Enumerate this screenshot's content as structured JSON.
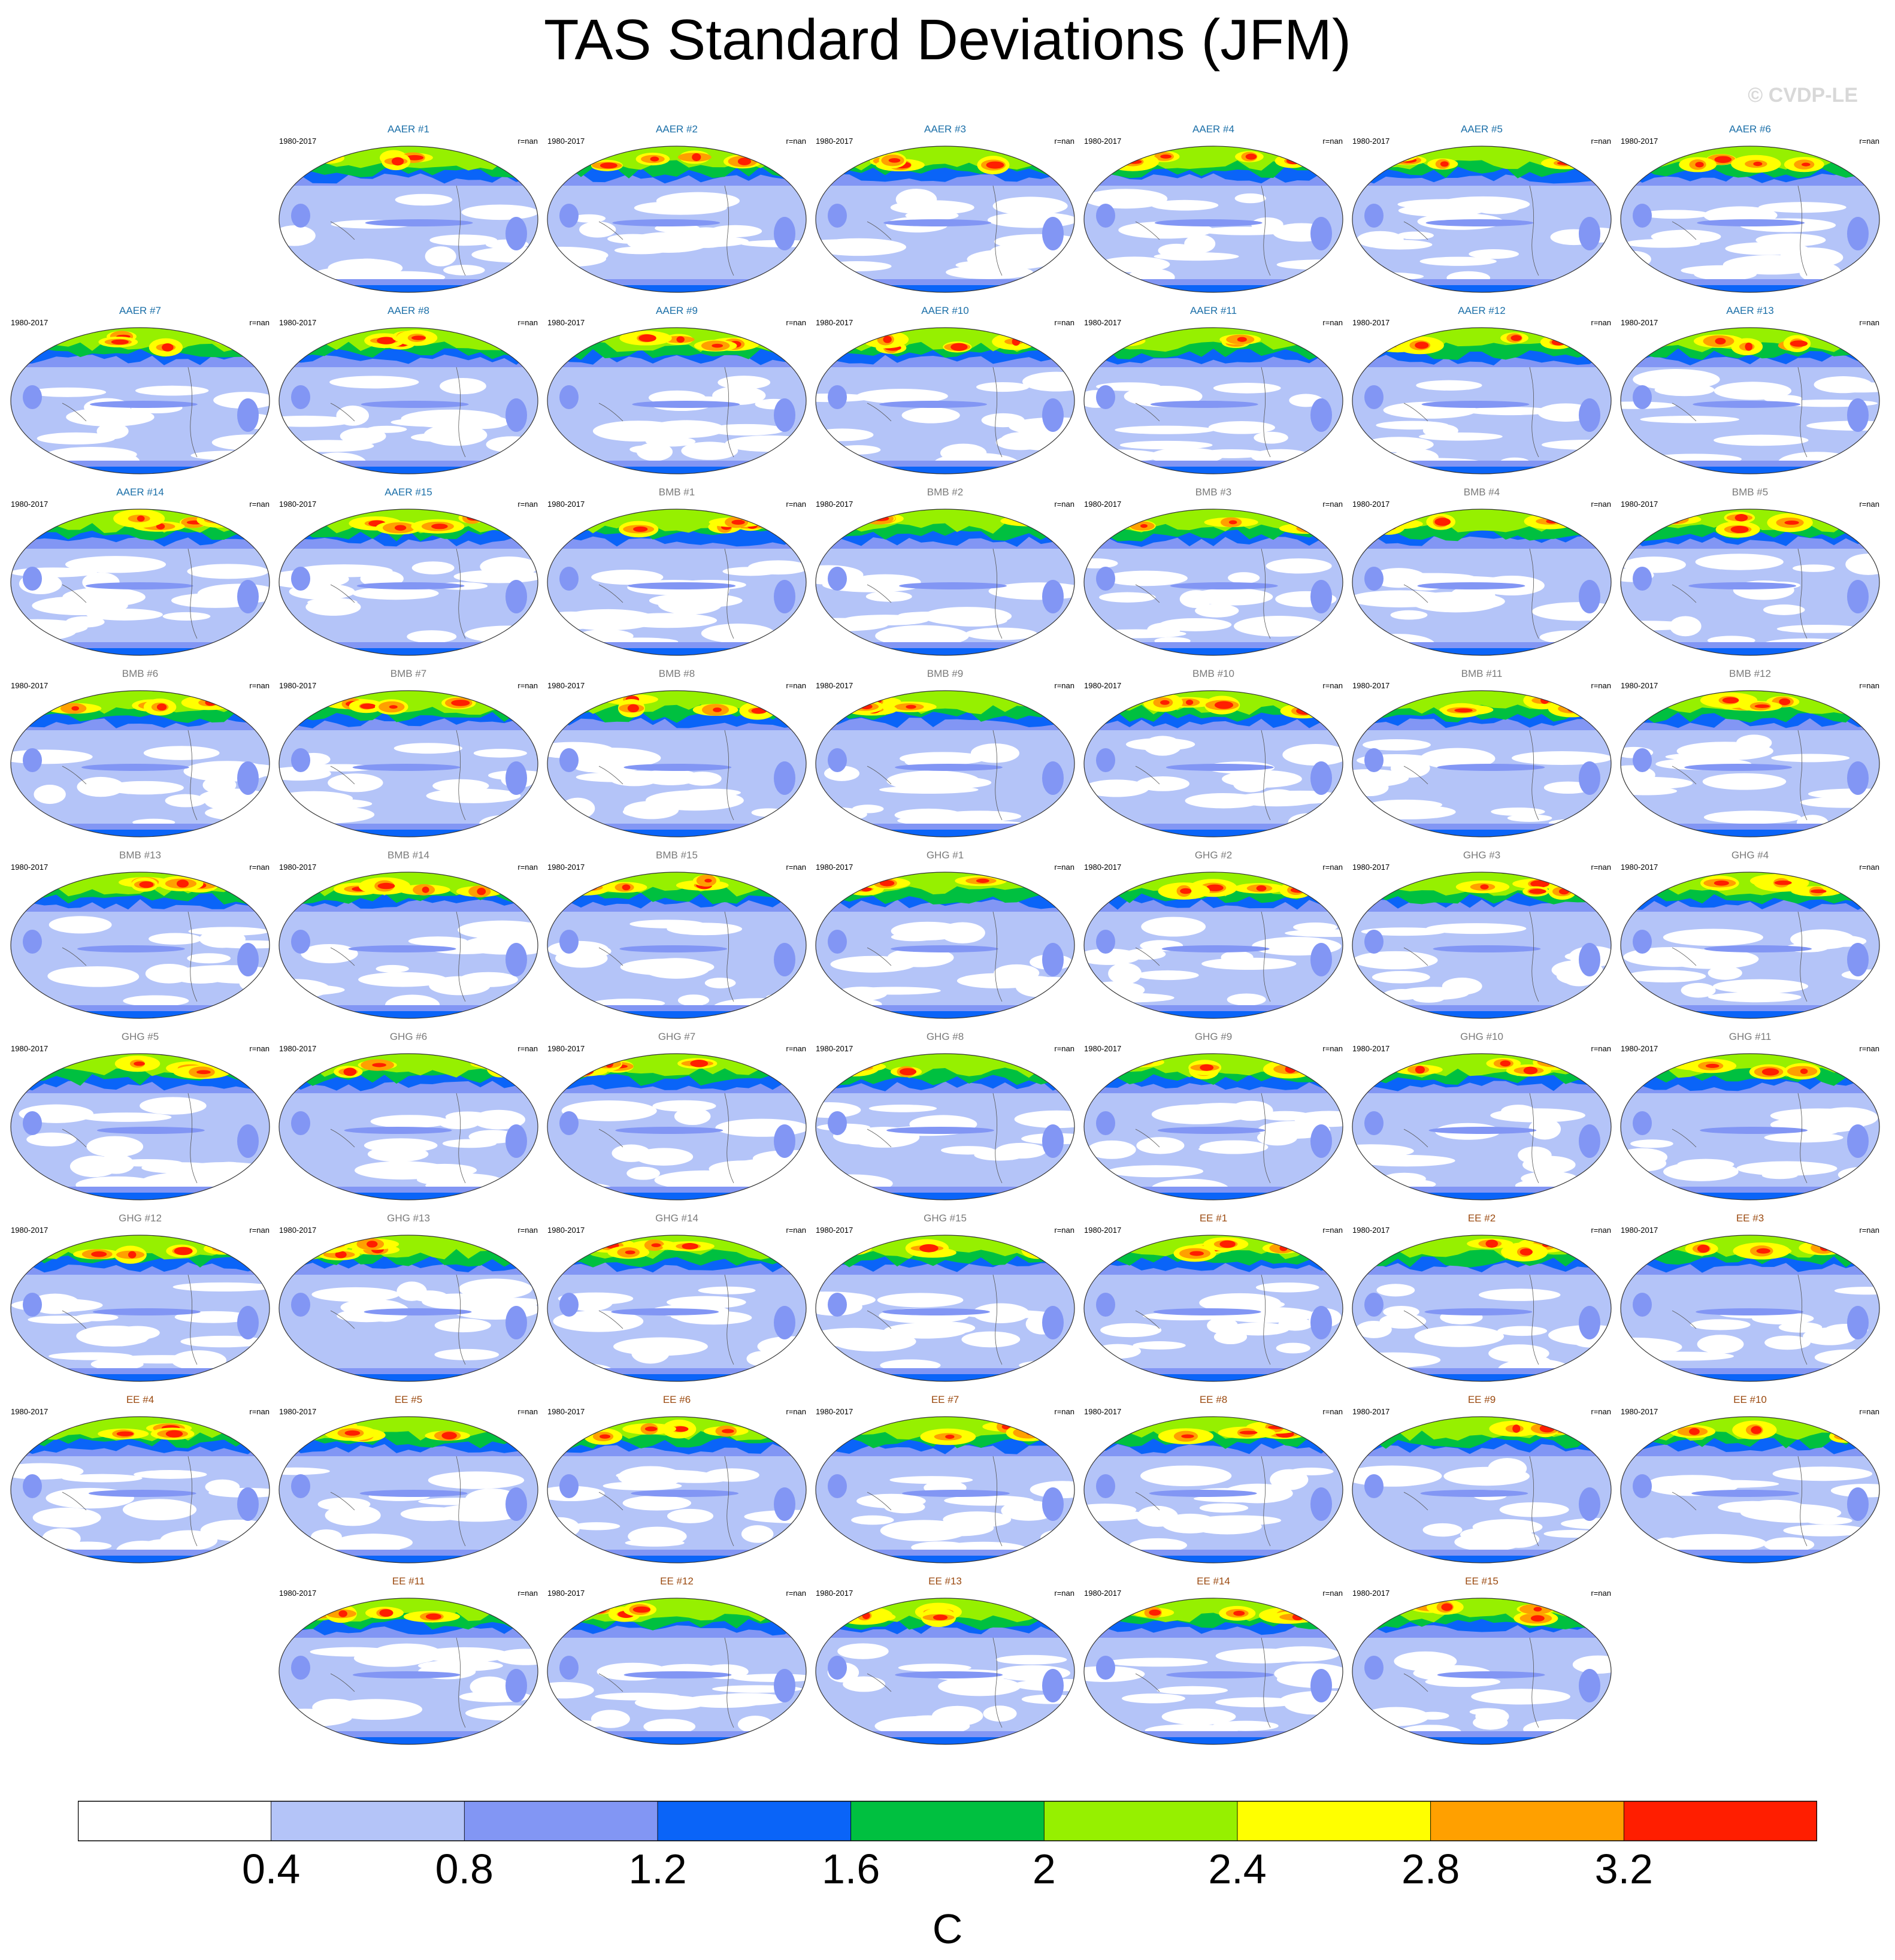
{
  "title": "TAS Standard Deviations (JFM)",
  "copyright": "© CVDP-LE",
  "chart_data": {
    "type": "heatmap",
    "title": "TAS Standard Deviations (JFM)",
    "panel_period": "1980-2017",
    "panel_stat": "r=nan",
    "panels": [
      {
        "name": "AAER #1",
        "row": 0,
        "col": 1
      },
      {
        "name": "AAER #2",
        "row": 0,
        "col": 2
      },
      {
        "name": "AAER #3",
        "row": 0,
        "col": 3
      },
      {
        "name": "AAER #4",
        "row": 0,
        "col": 4
      },
      {
        "name": "AAER #5",
        "row": 0,
        "col": 5
      },
      {
        "name": "AAER #6",
        "row": 0,
        "col": 6
      },
      {
        "name": "AAER #7",
        "row": 1,
        "col": 0
      },
      {
        "name": "AAER #8",
        "row": 1,
        "col": 1
      },
      {
        "name": "AAER #9",
        "row": 1,
        "col": 2
      },
      {
        "name": "AAER #10",
        "row": 1,
        "col": 3
      },
      {
        "name": "AAER #11",
        "row": 1,
        "col": 4
      },
      {
        "name": "AAER #12",
        "row": 1,
        "col": 5
      },
      {
        "name": "AAER #13",
        "row": 1,
        "col": 6
      },
      {
        "name": "AAER #14",
        "row": 2,
        "col": 0
      },
      {
        "name": "AAER #15",
        "row": 2,
        "col": 1
      },
      {
        "name": "BMB #1",
        "row": 2,
        "col": 2
      },
      {
        "name": "BMB #2",
        "row": 2,
        "col": 3
      },
      {
        "name": "BMB #3",
        "row": 2,
        "col": 4
      },
      {
        "name": "BMB #4",
        "row": 2,
        "col": 5
      },
      {
        "name": "BMB #5",
        "row": 2,
        "col": 6
      },
      {
        "name": "BMB #6",
        "row": 3,
        "col": 0
      },
      {
        "name": "BMB #7",
        "row": 3,
        "col": 1
      },
      {
        "name": "BMB #8",
        "row": 3,
        "col": 2
      },
      {
        "name": "BMB #9",
        "row": 3,
        "col": 3
      },
      {
        "name": "BMB #10",
        "row": 3,
        "col": 4
      },
      {
        "name": "BMB #11",
        "row": 3,
        "col": 5
      },
      {
        "name": "BMB #12",
        "row": 3,
        "col": 6
      },
      {
        "name": "BMB #13",
        "row": 4,
        "col": 0
      },
      {
        "name": "BMB #14",
        "row": 4,
        "col": 1
      },
      {
        "name": "BMB #15",
        "row": 4,
        "col": 2
      },
      {
        "name": "GHG #1",
        "row": 4,
        "col": 3
      },
      {
        "name": "GHG #2",
        "row": 4,
        "col": 4
      },
      {
        "name": "GHG #3",
        "row": 4,
        "col": 5
      },
      {
        "name": "GHG #4",
        "row": 4,
        "col": 6
      },
      {
        "name": "GHG #5",
        "row": 5,
        "col": 0
      },
      {
        "name": "GHG #6",
        "row": 5,
        "col": 1
      },
      {
        "name": "GHG #7",
        "row": 5,
        "col": 2
      },
      {
        "name": "GHG #8",
        "row": 5,
        "col": 3
      },
      {
        "name": "GHG #9",
        "row": 5,
        "col": 4
      },
      {
        "name": "GHG #10",
        "row": 5,
        "col": 5
      },
      {
        "name": "GHG #11",
        "row": 5,
        "col": 6
      },
      {
        "name": "GHG #12",
        "row": 6,
        "col": 0
      },
      {
        "name": "GHG #13",
        "row": 6,
        "col": 1
      },
      {
        "name": "GHG #14",
        "row": 6,
        "col": 2
      },
      {
        "name": "GHG #15",
        "row": 6,
        "col": 3
      },
      {
        "name": "EE #1",
        "row": 6,
        "col": 4
      },
      {
        "name": "EE #2",
        "row": 6,
        "col": 5
      },
      {
        "name": "EE #3",
        "row": 6,
        "col": 6
      },
      {
        "name": "EE #4",
        "row": 7,
        "col": 0
      },
      {
        "name": "EE #5",
        "row": 7,
        "col": 1
      },
      {
        "name": "EE #6",
        "row": 7,
        "col": 2
      },
      {
        "name": "EE #7",
        "row": 7,
        "col": 3
      },
      {
        "name": "EE #8",
        "row": 7,
        "col": 4
      },
      {
        "name": "EE #9",
        "row": 7,
        "col": 5
      },
      {
        "name": "EE #10",
        "row": 7,
        "col": 6
      },
      {
        "name": "EE #11",
        "row": 8,
        "col": 1
      },
      {
        "name": "EE #12",
        "row": 8,
        "col": 2
      },
      {
        "name": "EE #13",
        "row": 8,
        "col": 3
      },
      {
        "name": "EE #14",
        "row": 8,
        "col": 4
      },
      {
        "name": "EE #15",
        "row": 8,
        "col": 5
      }
    ],
    "group_title_colors": {
      "AAER": "#1b6fa8",
      "BMB": "#7a7a7a",
      "GHG": "#7a7a7a",
      "EE": "#9b4a10"
    },
    "colorbar": {
      "levels": [
        "0.4",
        "0.8",
        "1.2",
        "1.6",
        "2",
        "2.4",
        "2.8",
        "3.2"
      ],
      "colors": [
        "#ffffff",
        "#b4c4f8",
        "#8296f4",
        "#0a64f8",
        "#00c040",
        "#96f000",
        "#ffff00",
        "#ffa000",
        "#ff1e00"
      ],
      "units": "C"
    }
  }
}
